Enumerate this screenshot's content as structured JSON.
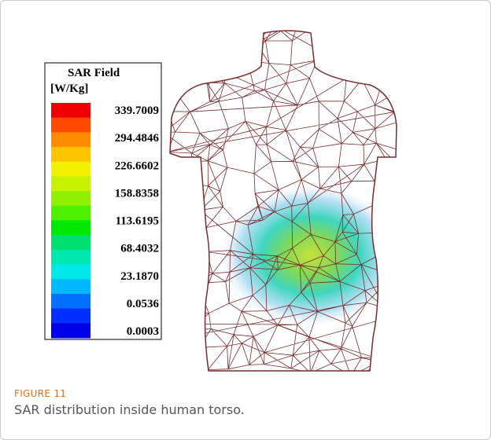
{
  "figure": {
    "legend": {
      "title": "SAR Field",
      "unit": "[W/Kg]",
      "labels": [
        "339.7009",
        "294.4846",
        "226.6602",
        "158.8358",
        "113.6195",
        "68.4032",
        "23.1870",
        "0.0536",
        "0.0003"
      ]
    },
    "label": "FIGURE 11",
    "caption": "SAR distribution inside human torso."
  }
}
